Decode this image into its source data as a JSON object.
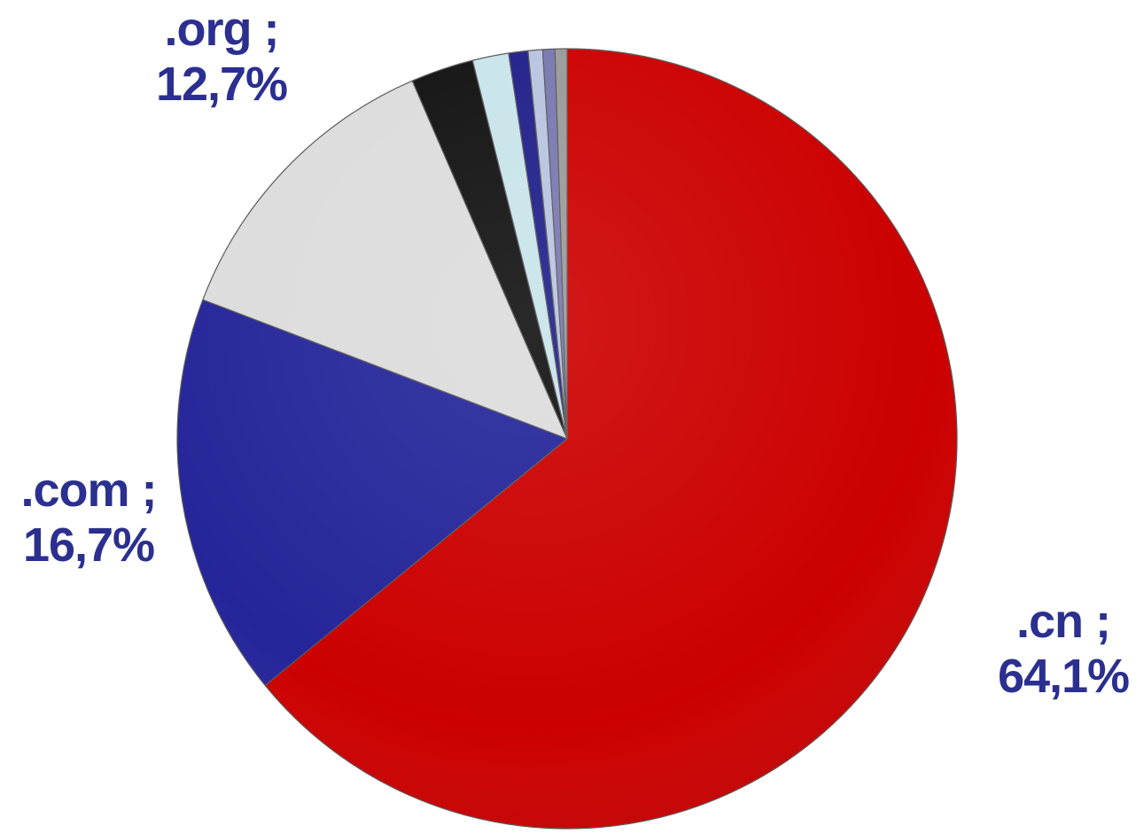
{
  "chart_data": {
    "type": "pie",
    "start_angle_deg": 0,
    "direction": "clockwise",
    "slices": [
      {
        "label": ".cn",
        "value": 64.1,
        "color": "#cc0000",
        "display": [
          ".cn ;",
          "64,1%"
        ]
      },
      {
        "label": ".com",
        "value": 16.7,
        "color": "#25259a",
        "display": [
          ".com ;",
          "16,7%"
        ]
      },
      {
        "label": ".org",
        "value": 12.7,
        "color": "#dcdcdc",
        "display": [
          ".org ;",
          "12,7%"
        ]
      },
      {
        "value": 2.6,
        "color": "#111111"
      },
      {
        "value": 1.5,
        "color": "#c8e4ea"
      },
      {
        "value": 0.8,
        "color": "#1f1f8a"
      },
      {
        "value": 0.6,
        "color": "#b8c4e0"
      },
      {
        "value": 0.5,
        "color": "#7878b0"
      },
      {
        "value": 0.5,
        "color": "#9a9a9a"
      }
    ],
    "label_color": "#2b2f8f",
    "legend": "none"
  }
}
